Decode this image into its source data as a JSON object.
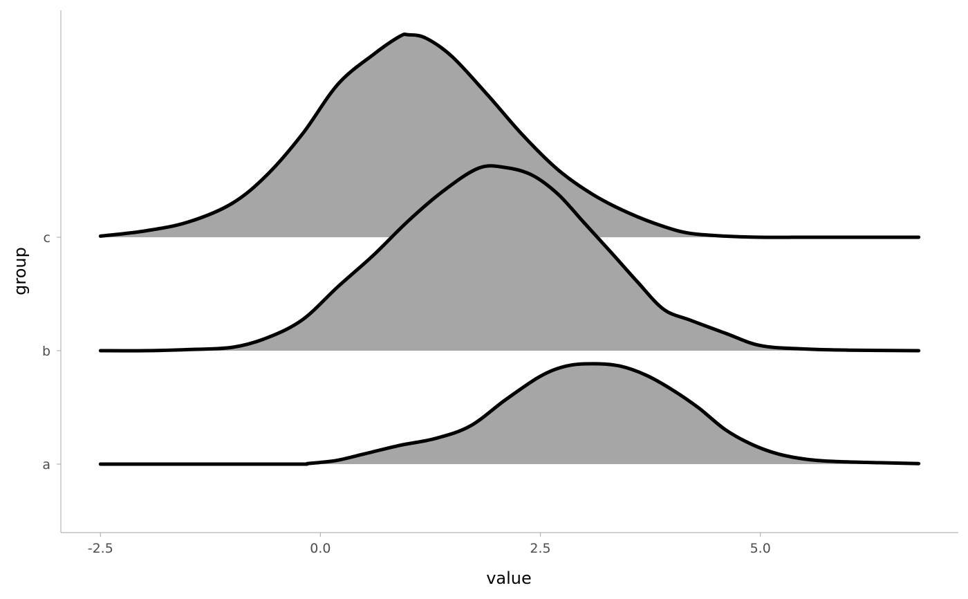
{
  "chart_data": {
    "type": "ridgeline",
    "xlabel": "value",
    "ylabel": "group",
    "xlim": [
      -2.95,
      7.25
    ],
    "x_ticks": [
      -2.5,
      0.0,
      2.5,
      5.0
    ],
    "x_tick_labels": [
      "-2.5",
      "0.0",
      "2.5",
      "5.0"
    ],
    "groups": [
      "a",
      "b",
      "c"
    ],
    "range": [
      -2.5,
      6.8
    ],
    "fill_color": "#a6a6a6",
    "line_color": "#000000",
    "grid": false,
    "legend": "none",
    "series": [
      {
        "name": "a",
        "start": -0.15,
        "x": [
          -0.15,
          0.0,
          0.2,
          0.5,
          0.9,
          1.3,
          1.7,
          2.1,
          2.5,
          2.8,
          3.1,
          3.4,
          3.7,
          4.0,
          4.3,
          4.6,
          4.9,
          5.2,
          5.5,
          5.8,
          6.2,
          6.8
        ],
        "y": [
          0.01,
          0.03,
          0.07,
          0.18,
          0.33,
          0.45,
          0.67,
          1.13,
          1.55,
          1.73,
          1.77,
          1.73,
          1.57,
          1.31,
          0.99,
          0.61,
          0.35,
          0.18,
          0.09,
          0.05,
          0.03,
          0.01
        ]
      },
      {
        "name": "b",
        "start": -2.5,
        "x": [
          -2.5,
          -2.0,
          -1.5,
          -1.0,
          -0.6,
          -0.2,
          0.2,
          0.6,
          1.0,
          1.4,
          1.8,
          2.1,
          2.4,
          2.7,
          3.0,
          3.3,
          3.6,
          3.9,
          4.2,
          4.6,
          5.0,
          5.5,
          6.0,
          6.8
        ],
        "y": [
          0.0,
          0.0,
          0.02,
          0.06,
          0.23,
          0.55,
          1.13,
          1.68,
          2.29,
          2.82,
          3.22,
          3.23,
          3.1,
          2.76,
          2.25,
          1.74,
          1.22,
          0.73,
          0.54,
          0.31,
          0.09,
          0.03,
          0.01,
          0.0
        ]
      },
      {
        "name": "c",
        "start": -2.5,
        "x": [
          -2.5,
          -2.0,
          -1.5,
          -1.0,
          -0.6,
          -0.2,
          0.2,
          0.6,
          0.9,
          1.0,
          1.2,
          1.5,
          1.9,
          2.3,
          2.7,
          3.1,
          3.5,
          3.9,
          4.2,
          4.6,
          5.0,
          5.5,
          6.0,
          6.8
        ],
        "y": [
          0.02,
          0.11,
          0.27,
          0.6,
          1.11,
          1.83,
          2.7,
          3.22,
          3.54,
          3.57,
          3.51,
          3.18,
          2.51,
          1.8,
          1.19,
          0.75,
          0.43,
          0.19,
          0.07,
          0.02,
          0.0,
          0.0,
          0.0,
          0.0
        ]
      }
    ]
  }
}
